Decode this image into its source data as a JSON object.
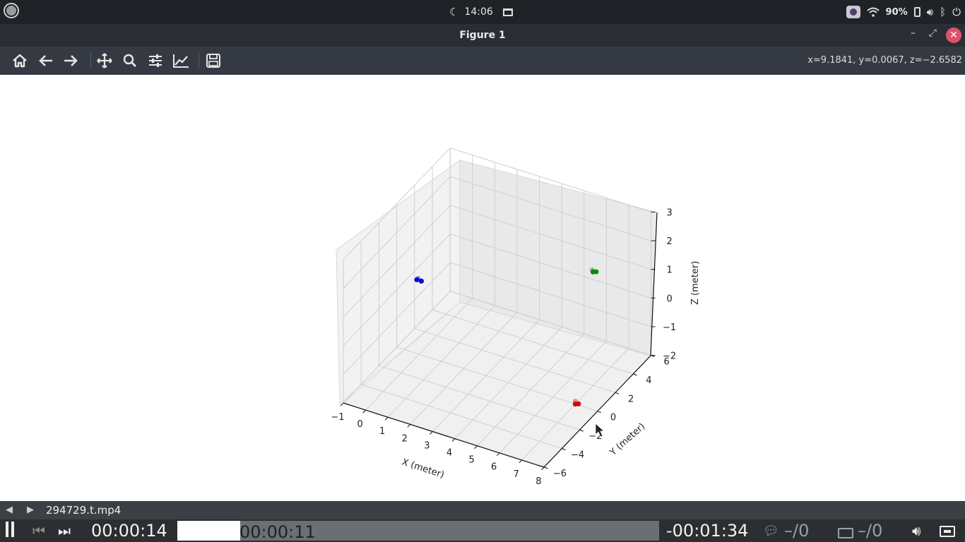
{
  "system_bar": {
    "time": "14:06",
    "battery": "90%",
    "icons": [
      "moon-icon",
      "window-icon",
      "camera-icon",
      "wifi-icon",
      "battery-icon",
      "volume-icon",
      "bluetooth-icon",
      "power-icon"
    ]
  },
  "window": {
    "title": "Figure 1",
    "minimize": "–",
    "maximize": "⤢",
    "close": "✕"
  },
  "toolbar": {
    "buttons": [
      "home-icon",
      "back-icon",
      "forward-icon",
      "pan-icon",
      "zoom-icon",
      "configure-icon",
      "edit-curve-icon",
      "save-icon"
    ],
    "coords": "x=9.1841, y=0.0067, z=−2.6582"
  },
  "chart_data": {
    "type": "scatter",
    "title": "",
    "xlabel": "X (meter)",
    "ylabel": "Y (meter)",
    "zlabel": "Z (meter)",
    "xlim": [
      -1,
      8
    ],
    "ylim": [
      -6,
      6
    ],
    "zlim": [
      -2,
      3
    ],
    "x_ticks": [
      "−1",
      "0",
      "1",
      "2",
      "3",
      "4",
      "5",
      "6",
      "7",
      "8"
    ],
    "y_ticks": [
      "−6",
      "−4",
      "−2",
      "0",
      "2",
      "4",
      "6"
    ],
    "z_ticks": [
      "−2",
      "−1",
      "0",
      "1",
      "2",
      "3"
    ],
    "grid": true,
    "series": [
      {
        "color": "#0000cc",
        "points": [
          [
            0.3,
            -1.0,
            1.0
          ],
          [
            0.5,
            -1.0,
            1.0
          ],
          [
            0.4,
            -1.1,
            1.1
          ]
        ]
      },
      {
        "color": "#008800",
        "points": [
          [
            6.0,
            4.5,
            0.9
          ],
          [
            6.1,
            4.6,
            0.9
          ],
          [
            6.0,
            4.4,
            1.0
          ]
        ]
      },
      {
        "color": "#cc0000",
        "points": [
          [
            7.0,
            0.0,
            -2.0
          ],
          [
            7.1,
            0.1,
            -2.0
          ],
          [
            7.0,
            0.0,
            -1.9
          ]
        ]
      }
    ]
  },
  "player": {
    "filename": "294729.t.mp4",
    "elapsed": "00:00:14",
    "hover_time": "00:00:11",
    "remaining": "-00:01:34",
    "progress": 0.13,
    "subtitles": "–/0",
    "captions": "–/0"
  }
}
